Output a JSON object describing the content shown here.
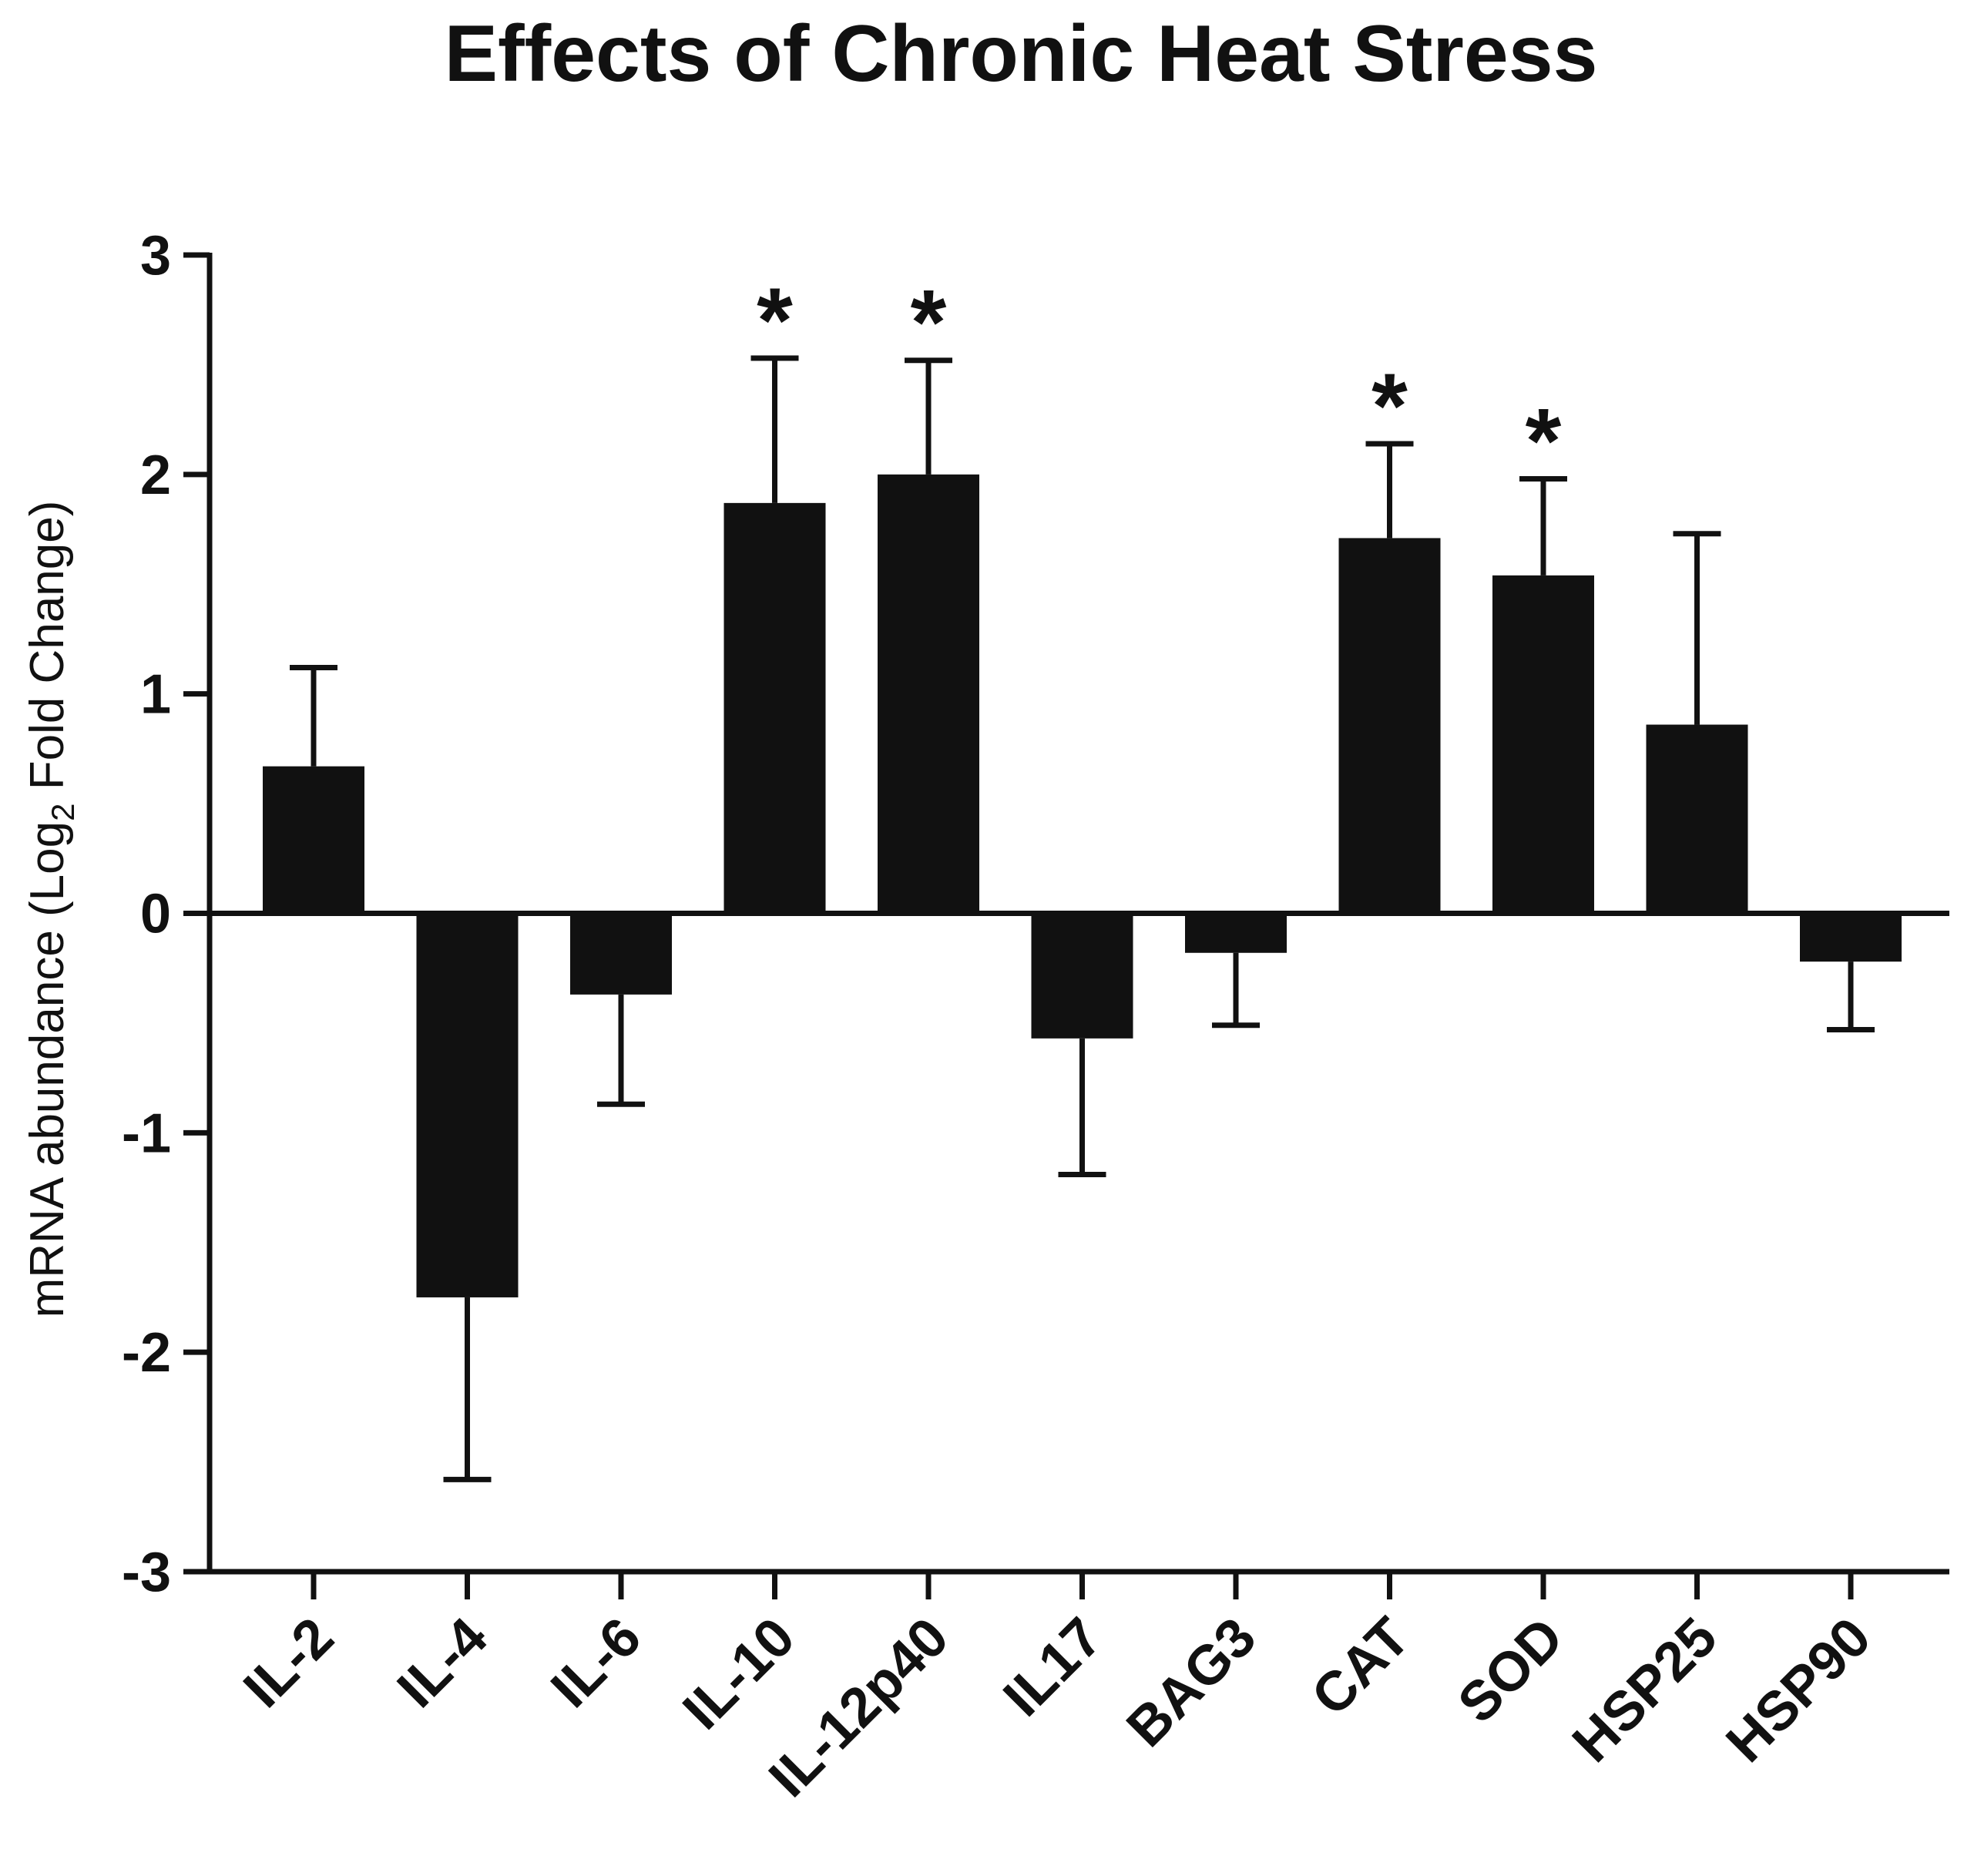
{
  "chart_data": {
    "type": "bar",
    "title": "Effects of Chronic Heat Stress",
    "ylabel_parts": [
      "mRNA abundance (Log",
      "2",
      " Fold Change)"
    ],
    "xlabel": "",
    "ylim": [
      -3,
      3
    ],
    "yticks": [
      "3",
      "2",
      "1",
      "0",
      "-1",
      "-2",
      "-3"
    ],
    "ytick_values": [
      3,
      2,
      1,
      0,
      -1,
      -2,
      -3
    ],
    "categories": [
      "IL-2",
      "IL-4",
      "IL-6",
      "IL-10",
      "IL-12p40",
      "IL17",
      "BAG3",
      "CAT",
      "SOD",
      "HSP25",
      "HSP90"
    ],
    "values": [
      0.67,
      -1.75,
      -0.37,
      1.87,
      2.0,
      -0.57,
      -0.18,
      1.71,
      1.54,
      0.86,
      -0.22
    ],
    "error_tips": [
      1.12,
      -2.58,
      -0.87,
      2.53,
      2.52,
      -1.19,
      -0.51,
      2.14,
      1.98,
      1.73,
      -0.53
    ],
    "significance_marker": "*",
    "significant": [
      false,
      false,
      false,
      true,
      true,
      false,
      false,
      true,
      true,
      false,
      false
    ],
    "bar_color": "#111111",
    "grid": false,
    "legend": "none"
  }
}
